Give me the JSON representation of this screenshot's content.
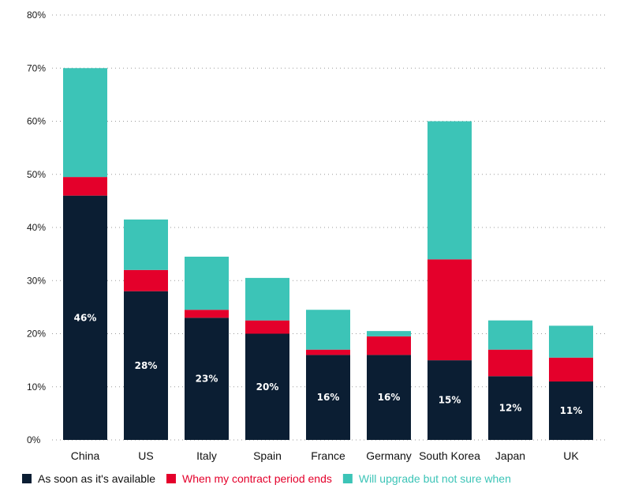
{
  "chart_data": {
    "type": "bar",
    "stacked": true,
    "categories": [
      "China",
      "US",
      "Italy",
      "Spain",
      "France",
      "Germany",
      "South Korea",
      "Japan",
      "UK"
    ],
    "series": [
      {
        "name": "As soon as it's available",
        "color": "#0b1e33",
        "values": [
          46,
          28,
          23,
          20,
          16,
          16,
          15,
          12,
          11
        ],
        "data_labels": [
          "46%",
          "28%",
          "23%",
          "20%",
          "16%",
          "16%",
          "15%",
          "12%",
          "11%"
        ]
      },
      {
        "name": "When my contract period ends",
        "color": "#e4002b",
        "values": [
          3.5,
          4,
          1.5,
          2.5,
          1,
          3.5,
          19,
          5,
          4.5
        ]
      },
      {
        "name": "Will upgrade but not sure when",
        "color": "#3cc4b7",
        "values": [
          20.5,
          9.5,
          10,
          8,
          7.5,
          1,
          26,
          5.5,
          6
        ]
      }
    ],
    "yticks": [
      "0%",
      "10%",
      "20%",
      "30%",
      "40%",
      "50%",
      "60%",
      "70%",
      "80%"
    ],
    "ylim": [
      0,
      80
    ],
    "grid": true,
    "legend_position": "bottom",
    "xlabel": "",
    "ylabel": ""
  }
}
